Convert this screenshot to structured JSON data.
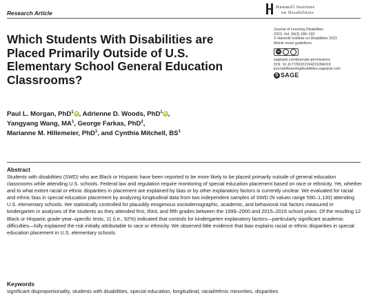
{
  "header": {
    "article_type": "Research Article",
    "publisher_logo": {
      "line1": "Hammill Institute",
      "line2": "on Disabilities"
    }
  },
  "title": "Which Students With Disabilities are Placed Primarily Outside of U.S. Elementary School General Education Classrooms?",
  "journal_info": {
    "journal": "Journal of Learning Disabilities",
    "volume": "2023, Vol. 56(3) 180–192",
    "copyright": "© Hammill Institute on Disabilities 2022",
    "reuse": "Article reuse guidelines:",
    "license_badge": "cc",
    "permissions": "sagepub.com/journals-permissions",
    "doi": "DOI: 10.1177/00222194221094019",
    "url": "journaloflearningdisabilities.sagepub.com",
    "publisher": "SAGE"
  },
  "authors": {
    "line1_a": "Paul L. Morgan, PhD",
    "line1_a_sup": "1",
    "line1_b": ", Adrienne D. Woods, PhD",
    "line1_b_sup": "1",
    "line1_end": ",",
    "line2_a": "Yangyang Wang, MA",
    "line2_a_sup": "1",
    "line2_b": ", George Farkas, PhD",
    "line2_b_sup": "2",
    "line2_end": ",",
    "line3_a": "Marianne M. Hillemeier, PhD",
    "line3_a_sup": "1",
    "line3_b": ", and Cynthia Mitchell, BS",
    "line3_b_sup": "1",
    "orcid_label": "iD"
  },
  "abstract": {
    "heading": "Abstract",
    "text": "Students with disabilities (SWD) who are Black or Hispanic have been reported to be more likely to be placed primarily outside of general education classrooms while attending U.S. schools. Federal law and regulation require monitoring of special education placement based on race or ethnicity. Yet, whether and to what extent racial or ethnic disparities in placement are explained by bias or by other explanatory factors is currently unclear. We evaluated for racial and ethnic bias in special education placement by analyzing longitudinal data from two independent samples of SWD (N values range 590–1,130) attending U.S. elementary schools. We statistically controlled for plausibly exogenous sociodemographic, academic, and behavioral risk factors measured in kindergarten in analyses of the students as they attended first, third, and fifth grades between the 1999–2000 and 2015–2016 school years. Of the resulting 12 Black or Hispanic grade-year–specific tests, 11 (i.e., 92%) indicated that controls for kindergarten explanatory factors—particularly significant academic difficulties—fully explained the risk initially attributable to race or ethnicity. We observed little evidence that bias explains racial or ethnic disparities in special education placement in U.S. elementary schools."
  },
  "keywords": {
    "heading": "Keywords",
    "text": "significant disproportionality, students with disabilities, special education, longitudinal, racial/ethnic minorities, disparities"
  }
}
